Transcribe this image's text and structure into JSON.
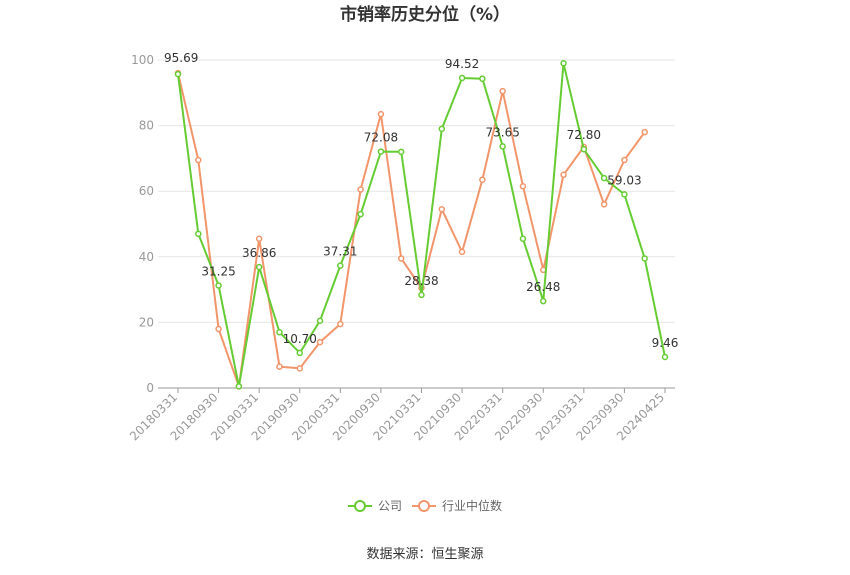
{
  "chart_data": {
    "type": "line",
    "title": "市销率历史分位（%）",
    "ylim": [
      0,
      100
    ],
    "yticks": [
      0,
      20,
      40,
      60,
      80,
      100
    ],
    "grid": true,
    "legend_position": "bottom",
    "x": [
      "20180331",
      "20180630",
      "20180930",
      "20181231",
      "20190331",
      "20190630",
      "20190930",
      "20191231",
      "20200331",
      "20200630",
      "20200930",
      "20201231",
      "20210331",
      "20210630",
      "20210930",
      "20211231",
      "20220331",
      "20220630",
      "20220930",
      "20221231",
      "20230331",
      "20230630",
      "20230930",
      "20231231",
      "20240425"
    ],
    "x_tick_labels": [
      "20180331",
      "20180930",
      "20190331",
      "20190930",
      "20200331",
      "20200930",
      "20210331",
      "20210930",
      "20220331",
      "20220930",
      "20230331",
      "20230930",
      "20240425"
    ],
    "series": [
      {
        "name": "公司",
        "color": "#66cc33",
        "values": [
          95.69,
          47,
          31.25,
          0.5,
          36.86,
          17,
          10.7,
          20.5,
          37.31,
          53,
          72.08,
          72,
          28.38,
          79,
          94.52,
          94.3,
          73.65,
          45.5,
          26.48,
          99,
          72.8,
          64,
          59.03,
          39.5,
          9.46
        ]
      },
      {
        "name": "行业中位数",
        "color": "#f2956b",
        "values": [
          96,
          69.5,
          18,
          0.5,
          45.5,
          6.5,
          6,
          14,
          19.5,
          60.5,
          83.5,
          39.5,
          30.5,
          54.5,
          41.5,
          63.5,
          90.5,
          61.5,
          36,
          65,
          73.5,
          56,
          69.5,
          78,
          null
        ]
      }
    ],
    "annotations": [
      {
        "index": 0,
        "text": "95.69"
      },
      {
        "index": 2,
        "text": "31.25"
      },
      {
        "index": 4,
        "text": "36.86"
      },
      {
        "index": 6,
        "text": "10.70"
      },
      {
        "index": 8,
        "text": "37.31"
      },
      {
        "index": 10,
        "text": "72.08"
      },
      {
        "index": 12,
        "text": "28.38"
      },
      {
        "index": 14,
        "text": "94.52"
      },
      {
        "index": 16,
        "text": "73.65"
      },
      {
        "index": 18,
        "text": "26.48"
      },
      {
        "index": 20,
        "text": "72.80"
      },
      {
        "index": 22,
        "text": "59.03"
      },
      {
        "index": 24,
        "text": "9.46"
      }
    ]
  },
  "source_text": "数据来源：恒生聚源"
}
